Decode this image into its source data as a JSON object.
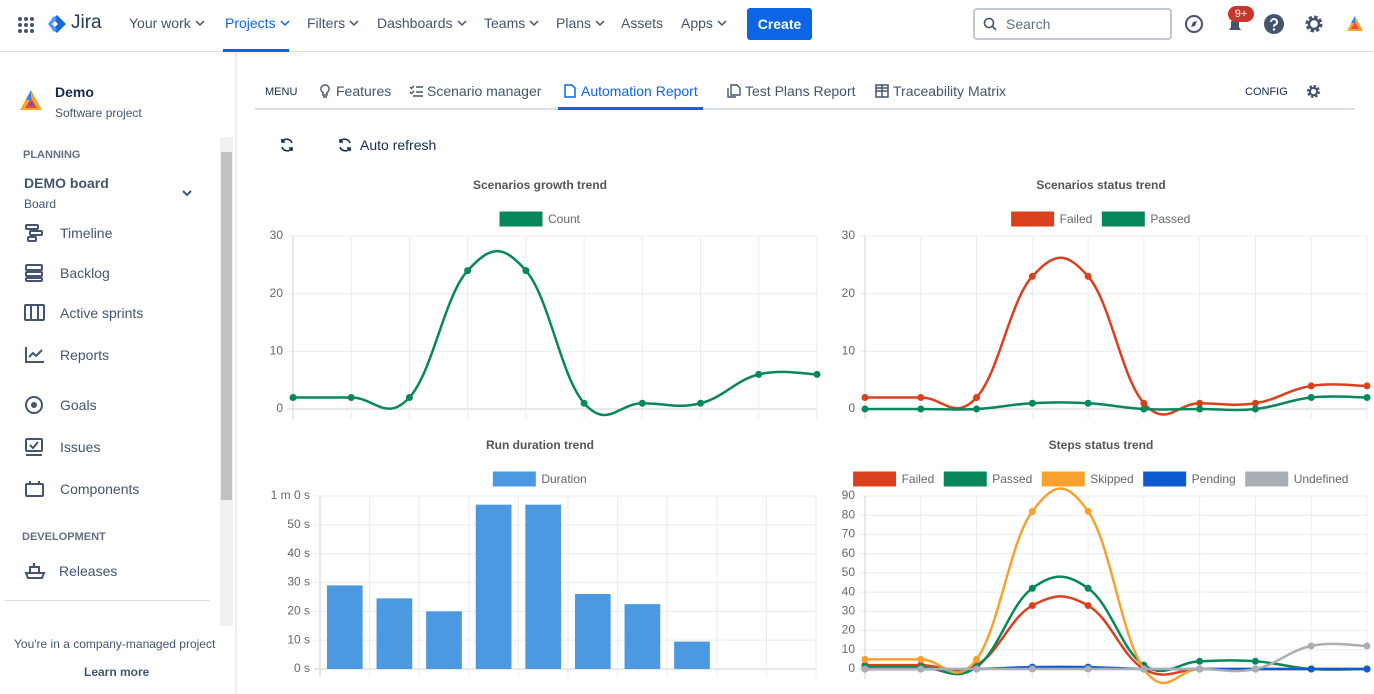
{
  "nav": {
    "product": "Jira",
    "items": [
      "Your work",
      "Projects",
      "Filters",
      "Dashboards",
      "Teams",
      "Plans",
      "Assets",
      "Apps"
    ],
    "create": "Create",
    "search": "Search",
    "notifications": "9+"
  },
  "sidebar": {
    "project_name": "Demo",
    "project_type": "Software project",
    "planning": "PLANNING",
    "board_name": "DEMO board",
    "board_type": "Board",
    "planning_items": [
      "Timeline",
      "Backlog",
      "Active sprints",
      "Reports",
      "Goals",
      "Issues",
      "Components"
    ],
    "development": "DEVELOPMENT",
    "development_items": [
      "Releases"
    ],
    "footer_text": "You're in a company-managed project",
    "footer_link": "Learn more"
  },
  "tabs": {
    "menu": "MENU",
    "items": [
      "Features",
      "Scenario manager",
      "Automation Report",
      "Test Plans Report",
      "Traceability Matrix"
    ],
    "config": "CONFIG"
  },
  "toolbar": {
    "auto_refresh": "Auto refresh"
  },
  "chart_data": [
    {
      "type": "line",
      "title": "Scenarios growth trend",
      "categories": [
        null,
        null,
        null,
        null,
        null,
        null,
        null,
        null,
        null,
        null
      ],
      "series": [
        {
          "name": "Count",
          "color": "#07875a",
          "values": [
            2,
            2,
            2,
            24,
            24,
            1,
            1,
            1,
            6,
            6
          ]
        }
      ],
      "ylim": [
        0,
        30
      ],
      "yticks": [
        0,
        10,
        20,
        30
      ],
      "grid": true
    },
    {
      "type": "line",
      "title": "Scenarios status trend",
      "categories": [
        null,
        null,
        null,
        null,
        null,
        null,
        null,
        null,
        null,
        null
      ],
      "series": [
        {
          "name": "Failed",
          "color": "#d9411e",
          "values": [
            2,
            2,
            2,
            23,
            23,
            1,
            1,
            1,
            4,
            4
          ]
        },
        {
          "name": "Passed",
          "color": "#07875a",
          "values": [
            0,
            0,
            0,
            1,
            1,
            0,
            0,
            0,
            2,
            2
          ]
        }
      ],
      "ylim": [
        0,
        30
      ],
      "yticks": [
        0,
        10,
        20,
        30
      ],
      "grid": true
    },
    {
      "type": "bar",
      "title": "Run duration trend",
      "categories": [
        null,
        null,
        null,
        null,
        null,
        null,
        null,
        null,
        null,
        null
      ],
      "series": [
        {
          "name": "Duration",
          "color": "#4d99e1",
          "values": [
            29,
            24.5,
            20,
            57,
            57,
            26,
            22.5,
            9.5,
            null,
            null
          ]
        }
      ],
      "ylim": [
        0,
        60
      ],
      "yticks": [
        {
          "value": 0,
          "label": "0 s"
        },
        {
          "value": 10,
          "label": "10 s"
        },
        {
          "value": 20,
          "label": "20 s"
        },
        {
          "value": 30,
          "label": "30 s"
        },
        {
          "value": 40,
          "label": "40 s"
        },
        {
          "value": 50,
          "label": "50 s"
        },
        {
          "value": 60,
          "label": "1 m 0 s"
        }
      ],
      "grid": true
    },
    {
      "type": "line",
      "title": "Steps status trend",
      "categories": [
        null,
        null,
        null,
        null,
        null,
        null,
        null,
        null,
        null,
        null
      ],
      "series": [
        {
          "name": "Failed",
          "color": "#d9411e",
          "values": [
            2,
            2,
            2,
            33,
            33,
            0,
            0,
            0,
            0,
            0
          ]
        },
        {
          "name": "Passed",
          "color": "#07875a",
          "values": [
            1,
            1,
            1,
            42,
            42,
            2,
            4,
            4,
            0,
            0
          ]
        },
        {
          "name": "Skipped",
          "color": "#f7a12e",
          "values": [
            5,
            5,
            5,
            82,
            82,
            0,
            0,
            0,
            0,
            0
          ]
        },
        {
          "name": "Pending",
          "color": "#0c5cd0",
          "values": [
            0,
            0,
            0,
            1,
            1,
            0,
            0,
            0,
            0,
            0
          ]
        },
        {
          "name": "Undefined",
          "color": "#a9adb4",
          "values": [
            0,
            0,
            0,
            0,
            0,
            0,
            0,
            0,
            12,
            12
          ]
        }
      ],
      "ylim": [
        0,
        90
      ],
      "yticks": [
        0,
        10,
        20,
        30,
        40,
        50,
        60,
        70,
        80,
        90
      ],
      "grid": true
    }
  ]
}
